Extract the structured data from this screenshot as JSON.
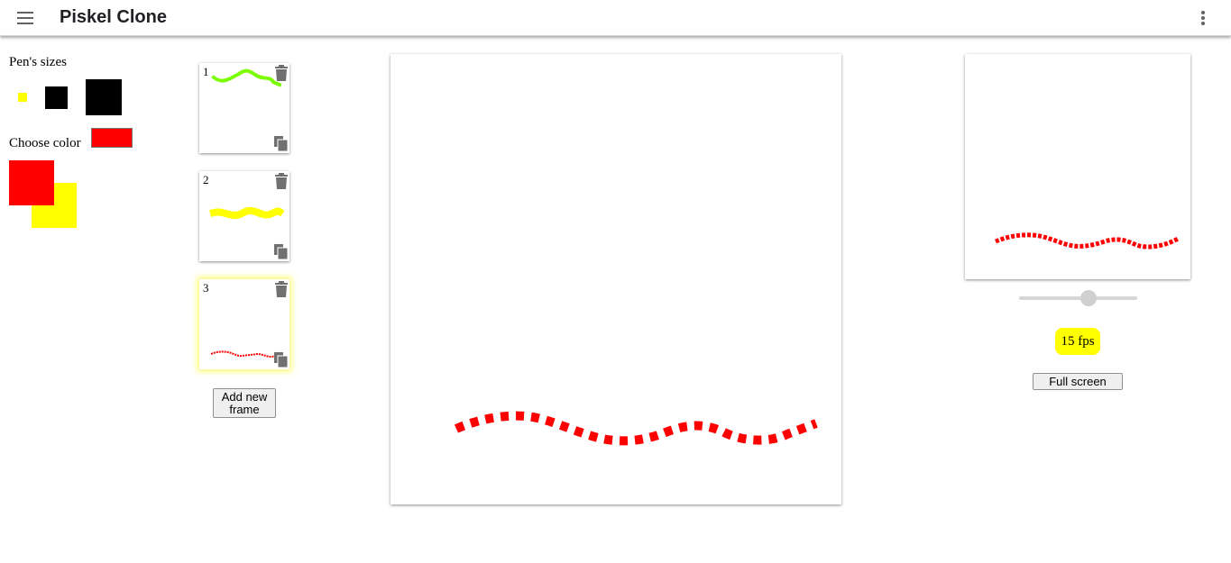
{
  "app": {
    "title": "Piskel Clone"
  },
  "icons": {
    "menu": "hamburger-menu-icon",
    "more": "more-vert-icon",
    "frame_delete": "trash-icon",
    "frame_duplicate": "copy-icon"
  },
  "colors": {
    "primary": "#ff0000",
    "secondary": "#ffff00",
    "frame1_stroke": "#7cfc00",
    "frame2_stroke": "#ffff00",
    "frame3_stroke": "#ff0000",
    "fps_badge": "#ffff00"
  },
  "tools": {
    "pen_sizes_label": "Pen's sizes",
    "choose_color_label": "Choose color",
    "current_color": "#ff0000"
  },
  "frames": [
    {
      "number": "1",
      "active": false
    },
    {
      "number": "2",
      "active": false
    },
    {
      "number": "3",
      "active": true
    }
  ],
  "frames_panel": {
    "add_button_label": "Add new frame"
  },
  "preview": {
    "fps_label": "15 fps",
    "fps_value": 15,
    "fullscreen_label": "Full screen"
  }
}
